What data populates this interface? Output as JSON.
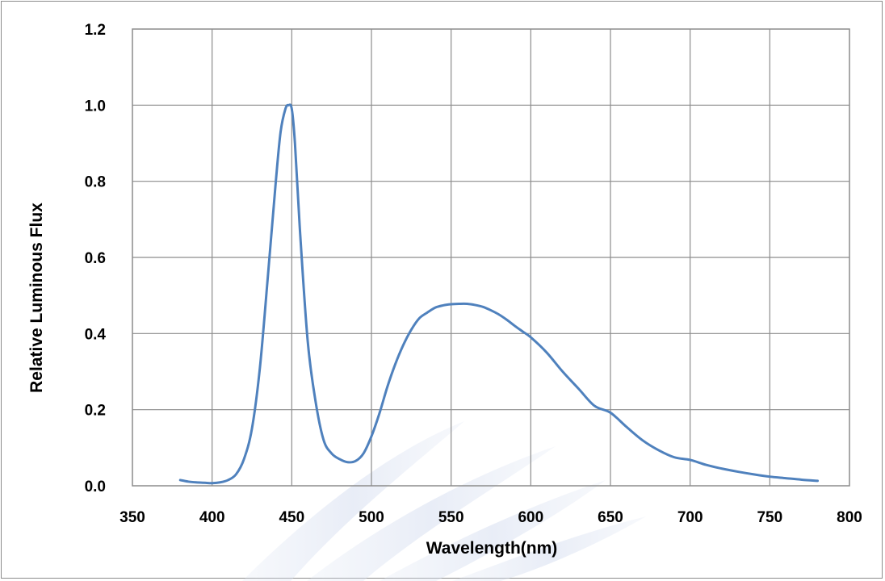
{
  "chart_data": {
    "type": "line",
    "title": "",
    "xlabel": "Wavelength(nm)",
    "ylabel": "Relative Luminous Flux",
    "xlim": [
      350,
      800
    ],
    "ylim": [
      0.0,
      1.2
    ],
    "xticks": [
      "350",
      "400",
      "450",
      "500",
      "550",
      "600",
      "650",
      "700",
      "750",
      "800"
    ],
    "yticks": [
      "0.0",
      "0.2",
      "0.4",
      "0.6",
      "0.8",
      "1.0",
      "1.2"
    ],
    "grid": true,
    "legend": "none",
    "series_color": "#4f81bd",
    "series": [
      {
        "x": [
          380,
          385,
          390,
          395,
          400,
          405,
          410,
          415,
          420,
          425,
          430,
          435,
          440,
          443,
          446,
          448,
          450,
          452,
          455,
          460,
          465,
          470,
          475,
          480,
          485,
          490,
          495,
          500,
          505,
          510,
          515,
          520,
          525,
          530,
          535,
          540,
          545,
          550,
          555,
          560,
          565,
          570,
          575,
          580,
          585,
          590,
          595,
          600,
          610,
          620,
          630,
          640,
          650,
          660,
          670,
          680,
          690,
          700,
          710,
          720,
          730,
          740,
          750,
          760,
          770,
          780
        ],
        "values": [
          0.015,
          0.011,
          0.009,
          0.008,
          0.007,
          0.009,
          0.015,
          0.03,
          0.07,
          0.15,
          0.31,
          0.55,
          0.8,
          0.93,
          0.99,
          1.0,
          0.99,
          0.9,
          0.68,
          0.38,
          0.22,
          0.12,
          0.085,
          0.07,
          0.062,
          0.065,
          0.085,
          0.13,
          0.19,
          0.26,
          0.32,
          0.37,
          0.41,
          0.44,
          0.455,
          0.468,
          0.474,
          0.477,
          0.478,
          0.478,
          0.475,
          0.47,
          0.461,
          0.45,
          0.436,
          0.42,
          0.405,
          0.39,
          0.35,
          0.3,
          0.255,
          0.21,
          0.192,
          0.155,
          0.12,
          0.094,
          0.075,
          0.068,
          0.055,
          0.045,
          0.037,
          0.03,
          0.024,
          0.02,
          0.016,
          0.013
        ]
      }
    ]
  }
}
